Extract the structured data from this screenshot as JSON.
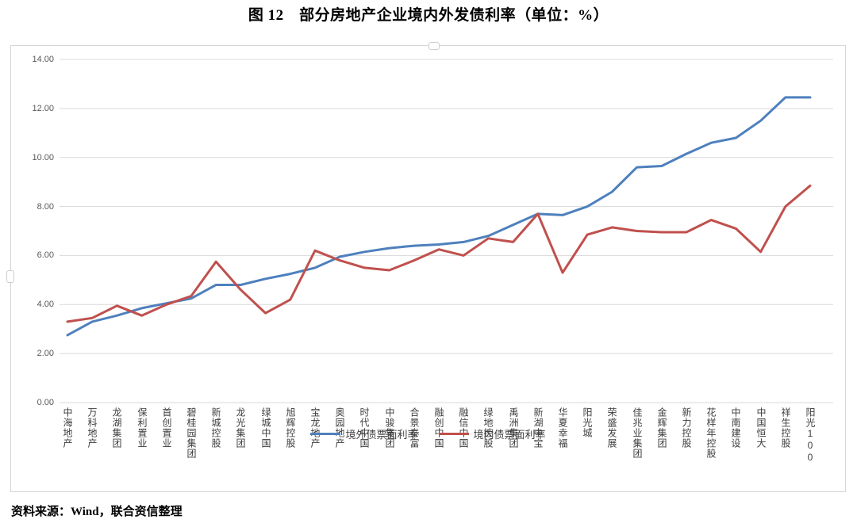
{
  "title": "图 12　部分房地产企业境内外发债利率（单位：%）",
  "source": "资料来源：Wind，联合资信整理",
  "colors": {
    "offshore_line": "#4E80BD",
    "onshore_line": "#C0504D",
    "gridline": "#d9d9d9",
    "axis_text": "#595959"
  },
  "chart_data": {
    "type": "line",
    "title": "图 12　部分房地产企业境内外发债利率（单位：%）",
    "xlabel": "",
    "ylabel": "",
    "ylim": [
      0,
      14
    ],
    "ytick_step": 2,
    "ytick_labels": [
      "0.00",
      "2.00",
      "4.00",
      "6.00",
      "8.00",
      "10.00",
      "12.00",
      "14.00"
    ],
    "grid": true,
    "legend_position": "bottom",
    "categories": [
      "中海地产",
      "万科地产",
      "龙湖集团",
      "保利置业",
      "首创置业",
      "碧桂园集团",
      "新城控股",
      "龙光集团",
      "绿城中国",
      "旭辉控股",
      "宝龙地产",
      "奥园地产",
      "时代中国",
      "中骏集团",
      "合景泰富",
      "融创中国",
      "融信中国",
      "绿地控股",
      "禹洲集团",
      "新湖中宝",
      "华夏幸福",
      "阳光城",
      "荣盛发展",
      "佳兆业集团",
      "金辉集团",
      "新力控股",
      "花样年控股",
      "中南建设",
      "中国恒大",
      "祥生控股",
      "阳光100"
    ],
    "series": [
      {
        "name": "境外债票面利率",
        "color": "#4E80BD",
        "values": [
          2.75,
          3.3,
          3.55,
          3.85,
          4.05,
          4.25,
          4.8,
          4.8,
          5.05,
          5.25,
          5.5,
          5.95,
          6.15,
          6.3,
          6.4,
          6.45,
          6.55,
          6.8,
          7.25,
          7.7,
          7.65,
          8.0,
          8.6,
          9.6,
          9.65,
          10.15,
          10.6,
          10.8,
          11.5,
          12.45,
          12.45
        ]
      },
      {
        "name": "境内债票面利率",
        "color": "#C0504D",
        "values": [
          3.3,
          3.45,
          3.95,
          3.55,
          4.0,
          4.35,
          5.75,
          4.6,
          3.65,
          4.2,
          6.2,
          5.8,
          5.5,
          5.4,
          5.8,
          6.25,
          6.0,
          6.7,
          6.55,
          7.7,
          5.3,
          6.85,
          7.15,
          7.0,
          6.95,
          6.95,
          7.45,
          7.1,
          6.15,
          8.0,
          8.85
        ]
      }
    ]
  }
}
